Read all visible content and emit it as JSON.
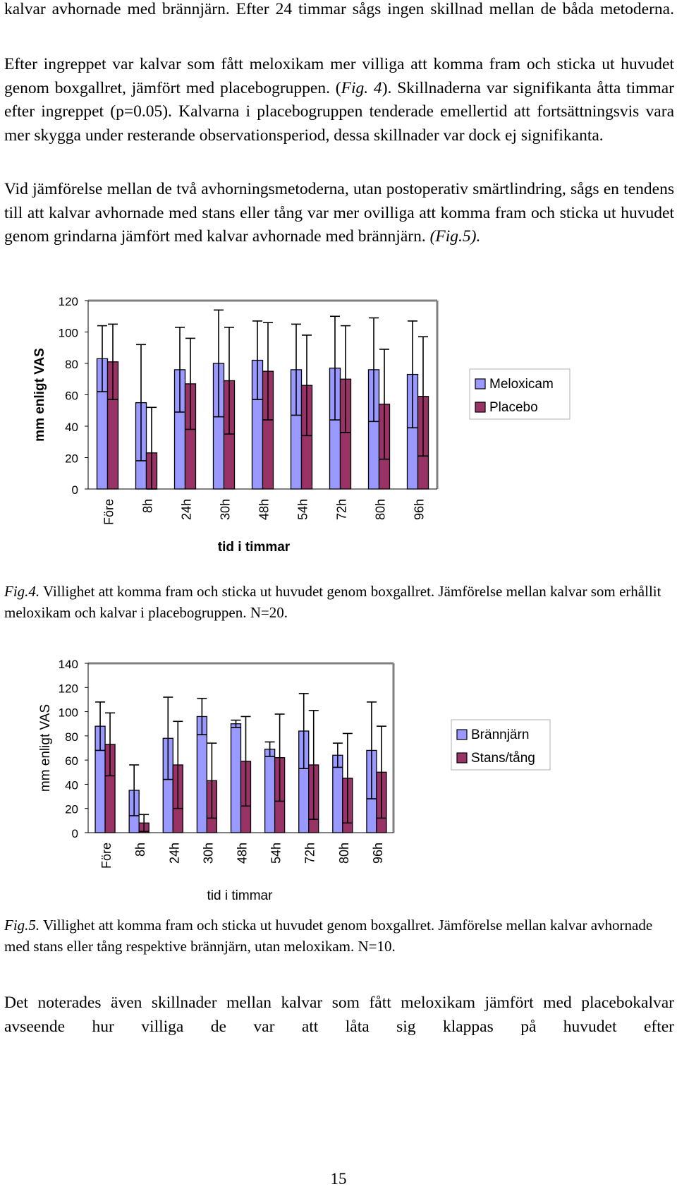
{
  "text": {
    "p0": "kalvar avhornade med brännjärn. Efter 24 timmar sågs ingen skillnad mellan de båda metoderna.",
    "p1_a": "Efter ingreppet var kalvar som fått meloxikam mer villiga att komma fram och sticka ut huvudet genom boxgallret, jämfört med placebogruppen. (",
    "p1_fig": "Fig. 4",
    "p1_b": "). Skillnaderna var signifikanta åtta timmar efter ingreppet (p=0.05). Kalvarna i placebogruppen tenderade emellertid att fortsättningsvis vara mer skygga under resterande observationsperiod, dessa skillnader var dock ej signifikanta.",
    "p2_a": "Vid jämförelse mellan de två avhorningsmetoderna, utan postoperativ smärtlindring, sågs en tendens till att kalvar avhornade med stans eller tång var mer ovilliga att komma fram och sticka ut huvudet genom grindarna jämfört med kalvar avhornade med brännjärn. ",
    "p2_fig": "(Fig.5).",
    "cap4_label": "Fig.4.",
    "cap4_text": " Villighet att komma fram och sticka ut huvudet genom boxgallret. Jämförelse mellan kalvar som erhållit meloxikam och kalvar i placebogruppen. N=20.",
    "cap5_label": "Fig.5.",
    "cap5_text": " Villighet att komma fram och sticka ut huvudet genom boxgallret. Jämförelse mellan kalvar avhornade med stans eller tång respektive brännjärn, utan meloxikam. N=10.",
    "p3": "Det noterades även skillnader mellan kalvar som fått meloxikam jämfört med placebokalvar avseende hur villiga de var att låta sig klappas på huvudet efter",
    "page_number": "15"
  },
  "colors": {
    "series_a": "#9999ff",
    "series_b": "#993366",
    "frame": "#808080"
  },
  "chart_data": [
    {
      "type": "bar",
      "ylabel": "mm enligt VAS",
      "xlabel": "tid i timmar",
      "ylim": [
        0,
        120
      ],
      "ytick_labels": [
        "0",
        "20",
        "40",
        "60",
        "80",
        "100",
        "120"
      ],
      "categories": [
        "Före",
        "8h",
        "24h",
        "30h",
        "48h",
        "54h",
        "72h",
        "80h",
        "96h"
      ],
      "legend_position": "right",
      "grid": false,
      "series": [
        {
          "name": "Meloxicam",
          "color": "#9999ff",
          "values": [
            83,
            55,
            76,
            80,
            82,
            76,
            77,
            76,
            73
          ],
          "err": [
            21,
            37,
            27,
            34,
            25,
            29,
            33,
            33,
            34
          ]
        },
        {
          "name": "Placebo",
          "color": "#993366",
          "values": [
            81,
            23,
            67,
            69,
            75,
            66,
            70,
            54,
            59
          ],
          "err": [
            24,
            29,
            29,
            34,
            31,
            32,
            34,
            35,
            38
          ]
        }
      ]
    },
    {
      "type": "bar",
      "ylabel": "mm enligt VAS",
      "xlabel": "tid i timmar",
      "ylim": [
        0,
        140
      ],
      "ytick_labels": [
        "0",
        "20",
        "40",
        "60",
        "80",
        "100",
        "120",
        "140"
      ],
      "categories": [
        "Före",
        "8h",
        "24h",
        "30h",
        "48h",
        "54h",
        "72h",
        "80h",
        "96h"
      ],
      "legend_position": "right",
      "grid": false,
      "series": [
        {
          "name": "Brännjärn",
          "color": "#9999ff",
          "values": [
            88,
            35,
            78,
            96,
            90,
            69,
            84,
            64,
            68
          ],
          "err": [
            20,
            21,
            34,
            15,
            3,
            6,
            31,
            10,
            40
          ]
        },
        {
          "name": "Stans/tång",
          "color": "#993366",
          "values": [
            73,
            8,
            56,
            43,
            59,
            62,
            56,
            45,
            50
          ],
          "err": [
            26,
            7,
            36,
            31,
            37,
            36,
            45,
            37,
            38
          ]
        }
      ]
    }
  ]
}
